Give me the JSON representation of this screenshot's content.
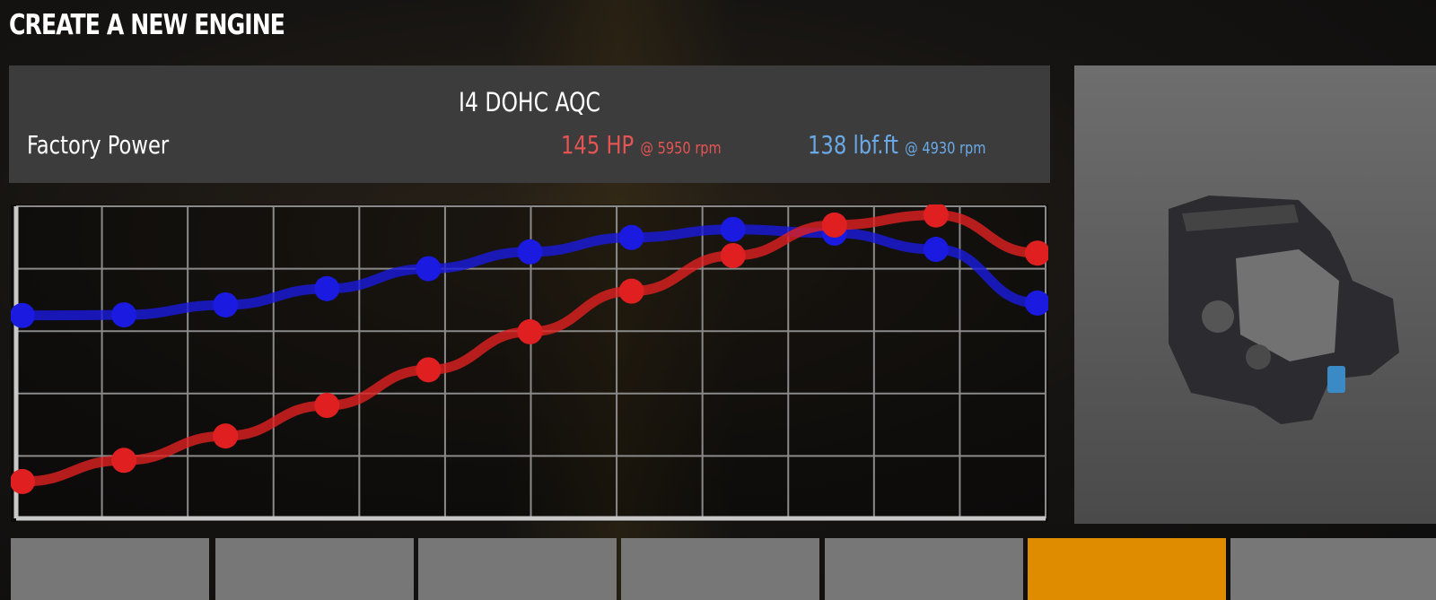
{
  "title": "CREATE A NEW ENGINE",
  "engine": {
    "name": "I4 DOHC AQC",
    "label": "Factory Power",
    "power": "145 HP",
    "power_rpm": "@ 5950 rpm",
    "torque": "138 lbf.ft",
    "torque_rpm": "@ 4930 rpm"
  },
  "colors": {
    "power": "#e02020",
    "torque": "#1a1ae0",
    "power_text": "#e55454",
    "torque_text": "#6aa9e6",
    "selected_tile": "#e08c00"
  },
  "chart_data": {
    "type": "line",
    "grid": true,
    "ylim": [
      0,
      5
    ],
    "xlim": [
      0,
      10
    ],
    "x": [
      0,
      1,
      2,
      3,
      4,
      5,
      6,
      7,
      8,
      9,
      10
    ],
    "series": [
      {
        "key": "torque",
        "color": "#1a1ae0",
        "values": [
          3.25,
          3.26,
          3.42,
          3.68,
          4.0,
          4.27,
          4.5,
          4.63,
          4.57,
          4.31,
          3.45
        ]
      },
      {
        "key": "power",
        "color": "#e02020",
        "values": [
          0.59,
          0.93,
          1.32,
          1.81,
          2.38,
          2.99,
          3.64,
          4.21,
          4.7,
          4.86,
          4.25
        ]
      }
    ]
  },
  "tiles": [
    {
      "selected": false
    },
    {
      "selected": false
    },
    {
      "selected": false
    },
    {
      "selected": false
    },
    {
      "selected": false
    },
    {
      "selected": true
    },
    {
      "selected": false
    }
  ]
}
